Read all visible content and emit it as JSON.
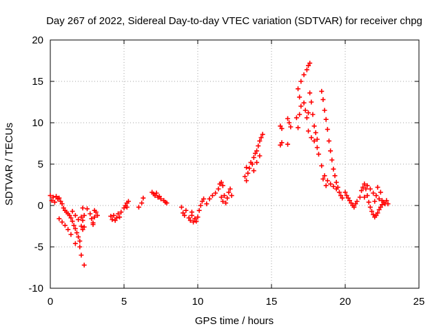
{
  "chart_data": {
    "type": "scatter",
    "title": "Day 267 of 2022, Sidereal Day-to-day VTEC variation (SDTVAR) for receiver chpg",
    "xlabel": "GPS time / hours",
    "ylabel": "SDTVAR / TECUs",
    "xlim": [
      0,
      25
    ],
    "ylim": [
      -10,
      20
    ],
    "x_ticks": [
      0,
      5,
      10,
      15,
      20,
      25
    ],
    "y_ticks": [
      -10,
      -5,
      0,
      5,
      10,
      15,
      20
    ],
    "x_tick_labels": [
      "0",
      "5",
      "10",
      "15",
      "20",
      "25"
    ],
    "y_tick_labels": [
      "-10",
      "-5",
      "0",
      "5",
      "10",
      "15",
      "20"
    ],
    "grid": true,
    "marker": "+",
    "marker_color": "#ff0000",
    "series": [
      {
        "name": "SDTVAR",
        "points": [
          [
            0.0,
            1.2
          ],
          [
            0.1,
            0.6
          ],
          [
            0.2,
            1.0
          ],
          [
            0.3,
            0.4
          ],
          [
            0.4,
            1.1
          ],
          [
            0.5,
            0.8
          ],
          [
            0.6,
            0.9
          ],
          [
            0.7,
            0.5
          ],
          [
            0.8,
            0.2
          ],
          [
            0.9,
            -0.3
          ],
          [
            1.0,
            -0.6
          ],
          [
            1.1,
            -0.8
          ],
          [
            1.2,
            -1.0
          ],
          [
            1.3,
            -1.2
          ],
          [
            1.4,
            -1.5
          ],
          [
            1.5,
            -1.9
          ],
          [
            1.6,
            -2.4
          ],
          [
            1.7,
            -2.8
          ],
          [
            1.8,
            -3.3
          ],
          [
            1.9,
            -3.8
          ],
          [
            2.0,
            -4.3
          ],
          [
            1.7,
            -4.6
          ],
          [
            0.6,
            -1.6
          ],
          [
            0.8,
            -2.0
          ],
          [
            1.0,
            -2.4
          ],
          [
            1.2,
            -2.9
          ],
          [
            1.4,
            -3.5
          ],
          [
            1.5,
            -0.7
          ],
          [
            1.7,
            -1.2
          ],
          [
            1.9,
            -1.7
          ],
          [
            2.1,
            -2.5
          ],
          [
            2.2,
            -2.9
          ],
          [
            2.3,
            -2.6
          ],
          [
            2.1,
            -1.4
          ],
          [
            2.2,
            -1.8
          ],
          [
            2.3,
            -1.2
          ],
          [
            2.0,
            -5.0
          ],
          [
            2.1,
            -6.0
          ],
          [
            2.3,
            -7.2
          ],
          [
            2.2,
            -0.3
          ],
          [
            2.5,
            -0.4
          ],
          [
            2.7,
            -1.0
          ],
          [
            2.8,
            -1.6
          ],
          [
            2.9,
            -2.1
          ],
          [
            3.0,
            -1.4
          ],
          [
            3.1,
            -0.8
          ],
          [
            3.2,
            -1.2
          ],
          [
            3.0,
            -0.6
          ],
          [
            2.9,
            -2.3
          ],
          [
            4.1,
            -1.3
          ],
          [
            4.2,
            -1.7
          ],
          [
            4.3,
            -1.2
          ],
          [
            4.4,
            -1.8
          ],
          [
            4.5,
            -1.5
          ],
          [
            4.6,
            -1.0
          ],
          [
            4.7,
            -1.4
          ],
          [
            4.8,
            -0.8
          ],
          [
            5.0,
            -0.3
          ],
          [
            5.1,
            0.0
          ],
          [
            5.2,
            0.3
          ],
          [
            5.3,
            0.5
          ],
          [
            5.2,
            -0.2
          ],
          [
            6.0,
            -0.2
          ],
          [
            6.2,
            0.3
          ],
          [
            6.3,
            0.9
          ],
          [
            6.9,
            1.6
          ],
          [
            7.0,
            1.4
          ],
          [
            7.1,
            1.2
          ],
          [
            7.3,
            1.0
          ],
          [
            7.5,
            0.8
          ],
          [
            7.7,
            0.6
          ],
          [
            7.8,
            0.4
          ],
          [
            7.9,
            0.3
          ],
          [
            7.2,
            1.5
          ],
          [
            7.4,
            1.1
          ],
          [
            8.9,
            -0.2
          ],
          [
            9.0,
            -0.9
          ],
          [
            9.1,
            -1.2
          ],
          [
            9.2,
            -0.6
          ],
          [
            9.4,
            -1.5
          ],
          [
            9.5,
            -1.8
          ],
          [
            9.6,
            -1.2
          ],
          [
            9.7,
            -2.0
          ],
          [
            9.8,
            -1.6
          ],
          [
            9.9,
            -1.9
          ],
          [
            10.0,
            -1.4
          ],
          [
            10.1,
            -0.6
          ],
          [
            10.2,
            0.0
          ],
          [
            10.3,
            0.5
          ],
          [
            10.4,
            0.8
          ],
          [
            9.6,
            -0.8
          ],
          [
            10.6,
            0.2
          ],
          [
            10.8,
            0.8
          ],
          [
            11.0,
            1.2
          ],
          [
            11.2,
            1.5
          ],
          [
            11.4,
            2.0
          ],
          [
            11.5,
            2.6
          ],
          [
            11.6,
            1.0
          ],
          [
            11.7,
            0.5
          ],
          [
            11.8,
            1.2
          ],
          [
            12.0,
            0.9
          ],
          [
            12.1,
            1.6
          ],
          [
            12.2,
            2.0
          ],
          [
            12.3,
            1.2
          ],
          [
            11.9,
            0.3
          ],
          [
            11.6,
            2.8
          ],
          [
            11.7,
            2.4
          ],
          [
            13.2,
            3.5
          ],
          [
            13.3,
            3.0
          ],
          [
            13.4,
            3.9
          ],
          [
            13.5,
            4.5
          ],
          [
            13.6,
            5.2
          ],
          [
            13.7,
            5.0
          ],
          [
            13.8,
            5.8
          ],
          [
            13.9,
            6.3
          ],
          [
            14.0,
            6.6
          ],
          [
            14.1,
            7.2
          ],
          [
            14.2,
            7.8
          ],
          [
            14.3,
            8.2
          ],
          [
            14.4,
            8.6
          ],
          [
            13.8,
            4.2
          ],
          [
            14.0,
            5.2
          ],
          [
            14.2,
            6.0
          ],
          [
            13.3,
            4.6
          ],
          [
            15.6,
            9.6
          ],
          [
            15.7,
            9.3
          ],
          [
            15.6,
            7.3
          ],
          [
            15.7,
            7.6
          ],
          [
            16.1,
            10.5
          ],
          [
            16.2,
            10.0
          ],
          [
            16.3,
            9.5
          ],
          [
            16.1,
            7.4
          ],
          [
            16.7,
            10.6
          ],
          [
            16.8,
            9.4
          ],
          [
            16.9,
            11.0
          ],
          [
            17.0,
            12.0
          ],
          [
            16.8,
            14.1
          ],
          [
            16.9,
            13.1
          ],
          [
            17.0,
            15.0
          ],
          [
            17.2,
            15.8
          ],
          [
            17.4,
            16.4
          ],
          [
            17.5,
            16.9
          ],
          [
            17.6,
            17.2
          ],
          [
            17.2,
            12.4
          ],
          [
            17.3,
            11.5
          ],
          [
            17.4,
            10.6
          ],
          [
            17.5,
            11.2
          ],
          [
            17.6,
            13.6
          ],
          [
            17.7,
            12.5
          ],
          [
            17.8,
            11.0
          ],
          [
            17.9,
            9.6
          ],
          [
            18.0,
            8.8
          ],
          [
            18.1,
            8.0
          ],
          [
            17.5,
            9.0
          ],
          [
            17.7,
            8.2
          ],
          [
            17.9,
            7.8
          ],
          [
            18.1,
            7.0
          ],
          [
            18.4,
            13.8
          ],
          [
            18.5,
            12.8
          ],
          [
            18.6,
            11.5
          ],
          [
            18.7,
            10.4
          ],
          [
            18.8,
            9.2
          ],
          [
            18.9,
            7.8
          ],
          [
            19.0,
            6.6
          ],
          [
            19.1,
            5.5
          ],
          [
            19.2,
            4.4
          ],
          [
            19.3,
            3.6
          ],
          [
            19.4,
            2.8
          ],
          [
            19.5,
            2.2
          ],
          [
            19.6,
            1.6
          ],
          [
            19.7,
            1.2
          ],
          [
            19.8,
            0.9
          ],
          [
            18.2,
            6.2
          ],
          [
            18.4,
            4.8
          ],
          [
            18.6,
            3.6
          ],
          [
            18.8,
            3.0
          ],
          [
            19.0,
            2.6
          ],
          [
            19.2,
            2.3
          ],
          [
            19.4,
            2.0
          ],
          [
            18.5,
            3.2
          ],
          [
            18.7,
            2.4
          ],
          [
            20.0,
            1.6
          ],
          [
            20.1,
            1.2
          ],
          [
            20.2,
            0.9
          ],
          [
            20.3,
            0.6
          ],
          [
            20.4,
            0.3
          ],
          [
            20.5,
            0.0
          ],
          [
            20.6,
            -0.2
          ],
          [
            20.7,
            0.2
          ],
          [
            20.8,
            0.5
          ],
          [
            21.0,
            1.0
          ],
          [
            21.1,
            1.8
          ],
          [
            21.2,
            2.2
          ],
          [
            21.3,
            2.6
          ],
          [
            21.4,
            2.0
          ],
          [
            21.5,
            1.2
          ],
          [
            21.6,
            0.4
          ],
          [
            21.7,
            -0.2
          ],
          [
            21.8,
            -0.7
          ],
          [
            21.9,
            -1.1
          ],
          [
            22.0,
            -1.4
          ],
          [
            22.1,
            -1.2
          ],
          [
            22.2,
            -0.9
          ],
          [
            22.3,
            -0.5
          ],
          [
            22.4,
            -0.2
          ],
          [
            22.5,
            0.1
          ],
          [
            22.6,
            0.4
          ],
          [
            22.7,
            0.2
          ],
          [
            22.8,
            0.6
          ],
          [
            22.9,
            0.2
          ],
          [
            21.5,
            2.4
          ],
          [
            21.7,
            2.0
          ],
          [
            21.9,
            1.5
          ],
          [
            22.1,
            1.2
          ],
          [
            22.3,
            0.8
          ],
          [
            22.5,
            0.6
          ],
          [
            21.3,
            1.0
          ],
          [
            22.0,
            0.5
          ],
          [
            22.2,
            2.2
          ],
          [
            22.4,
            1.6
          ]
        ]
      }
    ]
  }
}
